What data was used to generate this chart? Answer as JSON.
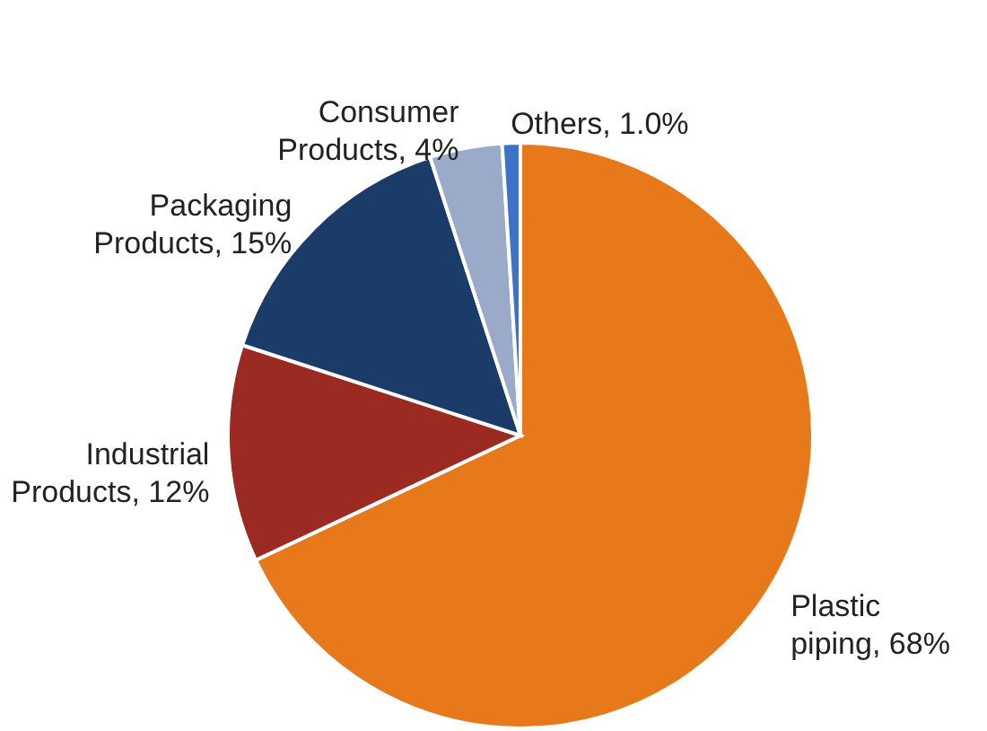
{
  "chart_data": {
    "type": "pie",
    "categories": [
      "Plastic piping",
      "Industrial Products",
      "Packaging Products",
      "Consumer Products",
      "Others"
    ],
    "values": [
      68,
      12,
      15,
      4,
      1
    ],
    "value_labels": [
      "68%",
      "12%",
      "15%",
      "4%",
      "1.0%"
    ],
    "colors": [
      "#e8791a",
      "#9b2a22",
      "#1b3c69",
      "#9aaac8",
      "#3b73c8"
    ],
    "legend": false
  }
}
